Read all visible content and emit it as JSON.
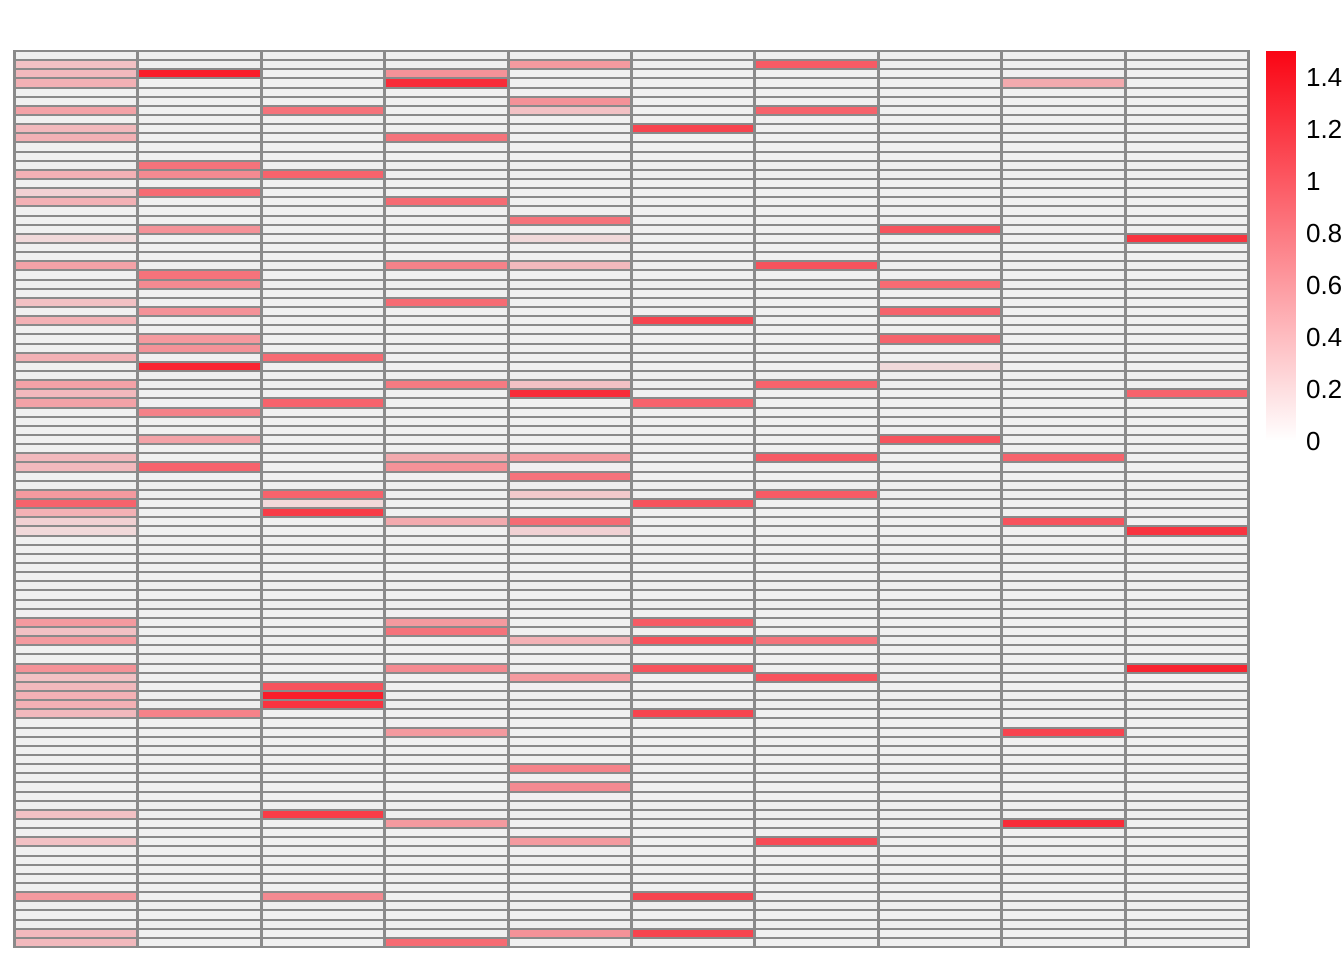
{
  "figure": {
    "background_color": "#ffffff",
    "grid_line_color": "#8a8a8a",
    "empty_cell_color": "#f0f0f0",
    "max_color": "#fa0514",
    "min_color": "#ffffff"
  },
  "chart_data": {
    "type": "heatmap",
    "title": "",
    "xlabel": "",
    "ylabel": "",
    "n_rows": 98,
    "n_cols": 10,
    "x_tick_labels": [],
    "y_tick_labels": [],
    "value_range": [
      0,
      1.5
    ],
    "legend_position": "right",
    "colorbar": {
      "ticks": [
        {
          "label": "1.4",
          "value": 1.4
        },
        {
          "label": "1.2",
          "value": 1.2
        },
        {
          "label": "1",
          "value": 1.0
        },
        {
          "label": "0.8",
          "value": 0.8
        },
        {
          "label": "0.6",
          "value": 0.6
        },
        {
          "label": "0.4",
          "value": 0.4
        },
        {
          "label": "0.2",
          "value": 0.2
        },
        {
          "label": "0",
          "value": 0.0
        }
      ],
      "color_max": "#fa0514",
      "color_min": "#ffffff"
    },
    "cells_note": "sparse non-zero cells as [row, col, value]; all other cells are 0",
    "cells": [
      [
        1,
        0,
        0.3
      ],
      [
        1,
        4,
        0.55
      ],
      [
        1,
        6,
        0.95
      ],
      [
        2,
        0,
        0.35
      ],
      [
        2,
        1,
        1.35
      ],
      [
        2,
        3,
        0.6
      ],
      [
        3,
        0,
        0.4
      ],
      [
        3,
        3,
        1.25
      ],
      [
        3,
        8,
        0.45
      ],
      [
        5,
        4,
        0.6
      ],
      [
        6,
        0,
        0.5
      ],
      [
        6,
        2,
        0.8
      ],
      [
        6,
        4,
        0.3
      ],
      [
        6,
        6,
        0.9
      ],
      [
        8,
        0,
        0.35
      ],
      [
        8,
        5,
        1.1
      ],
      [
        9,
        0,
        0.4
      ],
      [
        9,
        3,
        0.8
      ],
      [
        12,
        1,
        0.8
      ],
      [
        13,
        0,
        0.4
      ],
      [
        13,
        1,
        0.65
      ],
      [
        13,
        2,
        0.9
      ],
      [
        15,
        0,
        0.2
      ],
      [
        15,
        1,
        0.85
      ],
      [
        16,
        0,
        0.4
      ],
      [
        16,
        3,
        0.85
      ],
      [
        18,
        4,
        0.8
      ],
      [
        19,
        1,
        0.6
      ],
      [
        19,
        7,
        1.0
      ],
      [
        20,
        0,
        0.15
      ],
      [
        20,
        4,
        0.15
      ],
      [
        20,
        9,
        1.2
      ],
      [
        23,
        0,
        0.5
      ],
      [
        23,
        3,
        0.7
      ],
      [
        23,
        4,
        0.35
      ],
      [
        23,
        6,
        1.0
      ],
      [
        24,
        1,
        0.8
      ],
      [
        25,
        1,
        0.65
      ],
      [
        25,
        7,
        0.85
      ],
      [
        27,
        0,
        0.3
      ],
      [
        27,
        3,
        0.85
      ],
      [
        28,
        1,
        0.6
      ],
      [
        28,
        7,
        0.9
      ],
      [
        29,
        0,
        0.4
      ],
      [
        29,
        5,
        1.1
      ],
      [
        31,
        1,
        0.55
      ],
      [
        31,
        7,
        0.9
      ],
      [
        32,
        1,
        0.6
      ],
      [
        33,
        0,
        0.4
      ],
      [
        33,
        2,
        0.85
      ],
      [
        34,
        1,
        1.3
      ],
      [
        34,
        7,
        0.15
      ],
      [
        36,
        0,
        0.5
      ],
      [
        36,
        3,
        0.75
      ],
      [
        36,
        4,
        0.3
      ],
      [
        36,
        6,
        0.9
      ],
      [
        37,
        0,
        0.35
      ],
      [
        37,
        4,
        1.25
      ],
      [
        37,
        9,
        0.9
      ],
      [
        38,
        0,
        0.5
      ],
      [
        38,
        2,
        0.9
      ],
      [
        38,
        5,
        0.9
      ],
      [
        39,
        1,
        0.7
      ],
      [
        42,
        1,
        0.5
      ],
      [
        42,
        7,
        1.0
      ],
      [
        44,
        0,
        0.35
      ],
      [
        44,
        3,
        0.45
      ],
      [
        44,
        4,
        0.55
      ],
      [
        44,
        6,
        0.95
      ],
      [
        44,
        8,
        0.9
      ],
      [
        45,
        0,
        0.35
      ],
      [
        45,
        1,
        0.9
      ],
      [
        45,
        3,
        0.6
      ],
      [
        46,
        4,
        0.8
      ],
      [
        48,
        0,
        0.55
      ],
      [
        48,
        2,
        0.9
      ],
      [
        48,
        4,
        0.25
      ],
      [
        48,
        6,
        0.95
      ],
      [
        49,
        0,
        0.9
      ],
      [
        49,
        2,
        0.15
      ],
      [
        49,
        5,
        1.0
      ],
      [
        50,
        0,
        0.4
      ],
      [
        50,
        2,
        1.15
      ],
      [
        51,
        0,
        0.2
      ],
      [
        51,
        3,
        0.45
      ],
      [
        51,
        4,
        0.85
      ],
      [
        51,
        8,
        1.0
      ],
      [
        52,
        0,
        0.15
      ],
      [
        52,
        4,
        0.2
      ],
      [
        52,
        9,
        1.2
      ],
      [
        62,
        0,
        0.55
      ],
      [
        62,
        3,
        0.55
      ],
      [
        62,
        5,
        0.95
      ],
      [
        63,
        0,
        0.3
      ],
      [
        63,
        3,
        0.8
      ],
      [
        64,
        0,
        0.55
      ],
      [
        64,
        4,
        0.4
      ],
      [
        64,
        5,
        1.0
      ],
      [
        64,
        6,
        0.8
      ],
      [
        67,
        0,
        0.6
      ],
      [
        67,
        3,
        0.65
      ],
      [
        67,
        5,
        1.0
      ],
      [
        67,
        9,
        1.3
      ],
      [
        68,
        0,
        0.3
      ],
      [
        68,
        4,
        0.55
      ],
      [
        68,
        6,
        1.0
      ],
      [
        69,
        0,
        0.35
      ],
      [
        69,
        2,
        1.0
      ],
      [
        70,
        0,
        0.4
      ],
      [
        70,
        2,
        1.35
      ],
      [
        71,
        0,
        0.4
      ],
      [
        71,
        2,
        1.2
      ],
      [
        72,
        0,
        0.35
      ],
      [
        72,
        1,
        0.7
      ],
      [
        72,
        5,
        1.1
      ],
      [
        74,
        3,
        0.55
      ],
      [
        74,
        8,
        1.1
      ],
      [
        78,
        4,
        0.7
      ],
      [
        80,
        4,
        0.65
      ],
      [
        83,
        0,
        0.3
      ],
      [
        83,
        2,
        1.15
      ],
      [
        84,
        3,
        0.55
      ],
      [
        84,
        8,
        1.25
      ],
      [
        86,
        0,
        0.3
      ],
      [
        86,
        4,
        0.55
      ],
      [
        86,
        6,
        1.05
      ],
      [
        92,
        0,
        0.55
      ],
      [
        92,
        2,
        0.65
      ],
      [
        92,
        5,
        1.1
      ],
      [
        96,
        0,
        0.35
      ],
      [
        96,
        4,
        0.6
      ],
      [
        96,
        5,
        1.1
      ],
      [
        97,
        0,
        0.35
      ],
      [
        97,
        3,
        0.85
      ]
    ]
  }
}
